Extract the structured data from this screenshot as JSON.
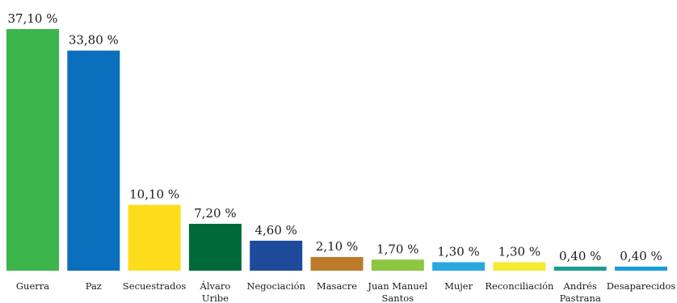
{
  "chart_data": {
    "type": "bar",
    "categories": [
      [
        "Guerra"
      ],
      [
        "Paz"
      ],
      [
        "Secuestrados"
      ],
      [
        "Álvaro",
        "Uribe"
      ],
      [
        "Negociación"
      ],
      [
        "Masacre"
      ],
      [
        "Juan Manuel",
        "Santos"
      ],
      [
        "Mujer"
      ],
      [
        "Reconciliación"
      ],
      [
        "Andrés",
        "Pastrana"
      ],
      [
        "Desaparecidos"
      ]
    ],
    "values": [
      37.1,
      33.8,
      10.1,
      7.2,
      4.6,
      2.1,
      1.7,
      1.3,
      1.3,
      0.4,
      0.4
    ],
    "value_labels": [
      "37,10 %",
      "33,80 %",
      "10,10 %",
      "7,20 %",
      "4,60 %",
      "2,10 %",
      "1,70 %",
      "1,30 %",
      "1,30 %",
      "0,40 %",
      "0,40 %"
    ],
    "colors": [
      "#3cb54a",
      "#0a6fbd",
      "#fddc1c",
      "#00693a",
      "#1e4a9c",
      "#bd7a2b",
      "#8dc640",
      "#29a8df",
      "#f7e934",
      "#1a9c94",
      "#1a9cd8"
    ],
    "ylim": [
      0,
      37.1
    ],
    "grid": false,
    "legend": "none"
  }
}
